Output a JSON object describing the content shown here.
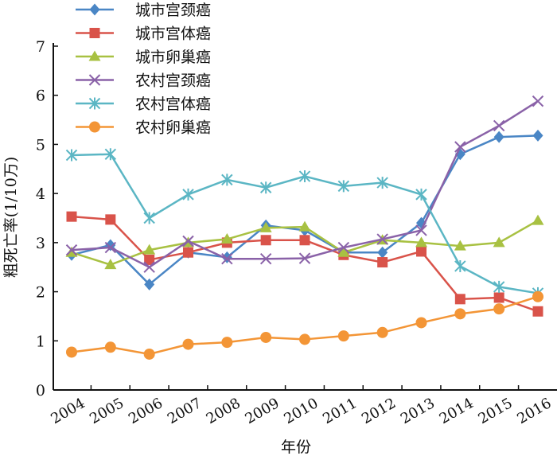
{
  "chart_data": {
    "type": "line",
    "title": "",
    "xlabel": "年份",
    "ylabel": "粗死亡率(1/10万)",
    "ylim": [
      0,
      7
    ],
    "yticks": [
      0,
      1,
      2,
      3,
      4,
      5,
      6,
      7
    ],
    "grid": false,
    "legend_position": "top-left",
    "categories": [
      "2004",
      "2005",
      "2006",
      "2007",
      "2008",
      "2009",
      "2010",
      "2011",
      "2012",
      "2013",
      "2014",
      "2015",
      "2016"
    ],
    "series": [
      {
        "name": "城市宫颈癌",
        "color": "#4A86C5",
        "marker": "diamond",
        "values": [
          2.75,
          2.95,
          2.15,
          2.8,
          2.7,
          3.35,
          3.25,
          2.8,
          2.8,
          3.4,
          4.8,
          5.15,
          5.18
        ]
      },
      {
        "name": "城市宫体癌",
        "color": "#D9534A",
        "marker": "square",
        "values": [
          3.53,
          3.47,
          2.65,
          2.8,
          3.0,
          3.05,
          3.05,
          2.75,
          2.6,
          2.82,
          1.85,
          1.88,
          1.6
        ]
      },
      {
        "name": "城市卵巢癌",
        "color": "#A8C142",
        "marker": "triangle",
        "values": [
          2.8,
          2.55,
          2.85,
          3.0,
          3.07,
          3.3,
          3.32,
          2.8,
          3.05,
          3.0,
          2.93,
          3.0,
          3.45
        ]
      },
      {
        "name": "农村宫颈癌",
        "color": "#8A62A8",
        "marker": "x",
        "values": [
          2.85,
          2.9,
          2.5,
          3.03,
          2.67,
          2.67,
          2.68,
          2.9,
          3.07,
          3.25,
          4.95,
          5.38,
          5.88
        ]
      },
      {
        "name": "农村宫体癌",
        "color": "#5BB6C4",
        "marker": "star",
        "values": [
          4.78,
          4.8,
          3.5,
          3.98,
          4.28,
          4.12,
          4.35,
          4.15,
          4.22,
          3.98,
          2.52,
          2.1,
          1.97
        ]
      },
      {
        "name": "农村卵巢癌",
        "color": "#F39536",
        "marker": "circle",
        "values": [
          0.77,
          0.87,
          0.73,
          0.93,
          0.97,
          1.07,
          1.03,
          1.1,
          1.17,
          1.37,
          1.55,
          1.65,
          1.9
        ]
      }
    ]
  }
}
